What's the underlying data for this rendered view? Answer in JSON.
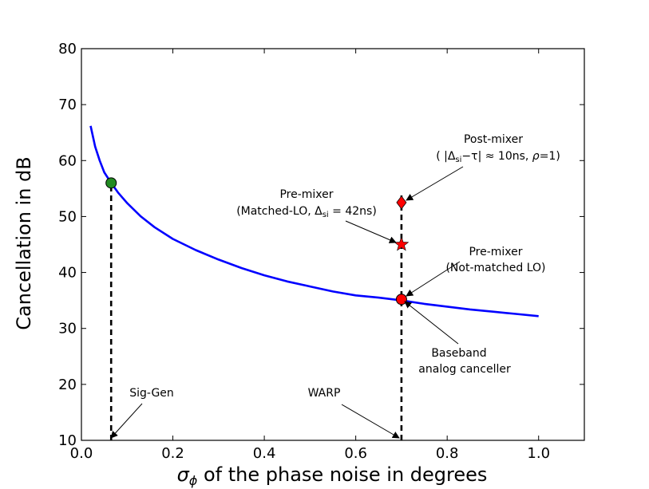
{
  "chart_data": {
    "type": "line",
    "title": "",
    "xlabel_symbol": "σ",
    "xlabel_sub": "ϕ",
    "xlabel_rest": " of the phase noise in degrees",
    "ylabel": "Cancellation in dB",
    "xlim": [
      0.0,
      1.1
    ],
    "ylim": [
      10,
      80
    ],
    "xticks": [
      "0.0",
      "0.2",
      "0.4",
      "0.6",
      "0.8",
      "1.0"
    ],
    "xtick_values": [
      0.0,
      0.2,
      0.4,
      0.6,
      0.8,
      1.0
    ],
    "yticks": [
      "10",
      "20",
      "30",
      "40",
      "50",
      "60",
      "70",
      "80"
    ],
    "ytick_values": [
      10,
      20,
      30,
      40,
      50,
      60,
      70,
      80
    ],
    "series": [
      {
        "name": "cancellation",
        "color": "#0000ff",
        "x": [
          0.02,
          0.03,
          0.04,
          0.05,
          0.065,
          0.08,
          0.1,
          0.13,
          0.16,
          0.2,
          0.25,
          0.3,
          0.35,
          0.4,
          0.45,
          0.5,
          0.55,
          0.6,
          0.65,
          0.7,
          0.75,
          0.8,
          0.85,
          0.9,
          0.95,
          1.0
        ],
        "y": [
          66.2,
          62.5,
          60.0,
          57.9,
          56.0,
          54.3,
          52.4,
          50.0,
          48.1,
          46.0,
          44.0,
          42.3,
          40.8,
          39.5,
          38.4,
          37.5,
          36.6,
          35.9,
          35.5,
          35.0,
          34.4,
          33.9,
          33.4,
          33.0,
          32.6,
          32.2
        ]
      }
    ],
    "markers": [
      {
        "name": "sig-gen-point",
        "shape": "circle",
        "color": "#228b22",
        "x": 0.065,
        "y": 56.0
      },
      {
        "name": "baseband-point",
        "shape": "circle",
        "color": "#ff0000",
        "x": 0.7,
        "y": 35.2
      },
      {
        "name": "pre-mixer-matched-point",
        "shape": "star",
        "color": "#ff0000",
        "x": 0.7,
        "y": 45.0
      },
      {
        "name": "post-mixer-point",
        "shape": "diamond",
        "color": "#ff0000",
        "x": 0.7,
        "y": 52.5
      }
    ],
    "vlines": [
      {
        "name": "sig-gen-vline",
        "x": 0.065,
        "y_from": 10,
        "y_to": 56.0
      },
      {
        "name": "warp-vline",
        "x": 0.7,
        "y_from": 10,
        "y_to": 54.0
      }
    ],
    "annotations": [
      {
        "name": "sig-gen",
        "lines": [
          "Sig-Gen"
        ]
      },
      {
        "name": "warp",
        "lines": [
          "WARP"
        ]
      },
      {
        "name": "baseband",
        "lines": [
          "Baseband",
          "analog canceller"
        ]
      },
      {
        "name": "pre-mixer-not-matched",
        "lines": [
          "Pre-mixer",
          "(Not-matched LO)"
        ]
      },
      {
        "name": "pre-mixer-matched",
        "line1": "Pre-mixer",
        "line2_pre": "(Matched-LO, Δ",
        "line2_sub": "si",
        "line2_post": " = 42ns)"
      },
      {
        "name": "post-mixer",
        "line1": "Post-mixer",
        "line2_a": "( |Δ",
        "line2_sub": "si",
        "line2_b": "−τ| ≈ 10ns, ",
        "line2_rho": "ρ",
        "line2_c": "=1)"
      }
    ]
  }
}
